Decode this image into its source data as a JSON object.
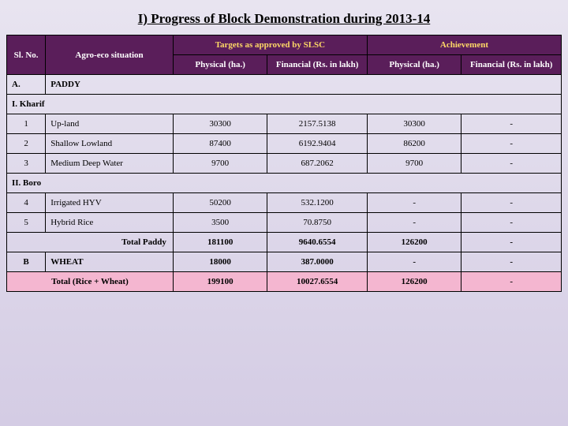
{
  "title": "I) Progress of Block Demonstration during 2013-14",
  "headers": {
    "sl": "Sl. No.",
    "agro": "Agro-eco situation",
    "targets": "Targets as approved by SLSC",
    "achievement": "Achievement",
    "phys": "Physical (ha.)",
    "fin_lakh": "Financial    (Rs. in lakh)",
    "fin_rs_lakh": "Financial (Rs. in lakh)"
  },
  "sectionA": {
    "label": "A.",
    "name": "PADDY"
  },
  "kharif": {
    "label": "I. Kharif"
  },
  "boro": {
    "label": "II. Boro"
  },
  "rows": {
    "r1": {
      "sl": "1",
      "agro": "Up-land",
      "tphys": "30300",
      "tfin": "2157.5138",
      "aphys": "30300",
      "afin": "-"
    },
    "r2": {
      "sl": "2",
      "agro": "Shallow Lowland",
      "tphys": "87400",
      "tfin": "6192.9404",
      "aphys": "86200",
      "afin": "-"
    },
    "r3": {
      "sl": "3",
      "agro": "Medium Deep Water",
      "tphys": "9700",
      "tfin": "687.2062",
      "aphys": "9700",
      "afin": "-"
    },
    "r4": {
      "sl": "4",
      "agro": "Irrigated HYV",
      "tphys": "50200",
      "tfin": "532.1200",
      "aphys": "-",
      "afin": "-"
    },
    "r5": {
      "sl": "5",
      "agro": "Hybrid Rice",
      "tphys": "3500",
      "tfin": "70.8750",
      "aphys": "-",
      "afin": "-"
    }
  },
  "totalPaddy": {
    "label": "Total Paddy",
    "tphys": "181100",
    "tfin": "9640.6554",
    "aphys": "126200",
    "afin": "-"
  },
  "wheat": {
    "sl": "B",
    "agro": "WHEAT",
    "tphys": "18000",
    "tfin": "387.0000",
    "aphys": "-",
    "afin": "-"
  },
  "totalAll": {
    "label": "Total (Rice + Wheat)",
    "tphys": "199100",
    "tfin": "10027.6554",
    "aphys": "126200",
    "afin": "-"
  }
}
